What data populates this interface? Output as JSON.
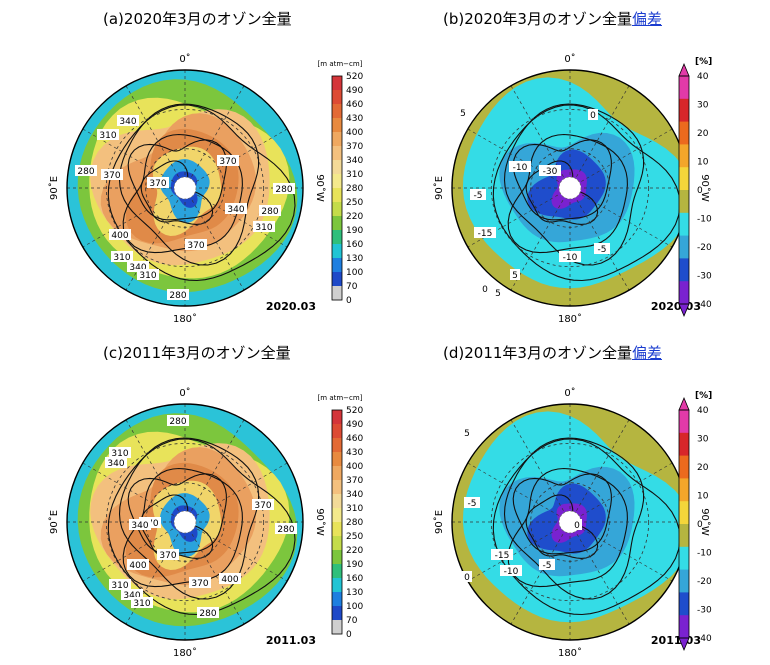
{
  "panels": [
    {
      "id": "a",
      "title": "(a)2020年3月のオゾン全量",
      "title_link": "",
      "kind": "total",
      "date": "2020.03",
      "contour_labels": [
        "340",
        "310",
        "370",
        "280",
        "370",
        "370",
        "400",
        "280",
        "310",
        "340",
        "310",
        "280",
        "280",
        "310",
        "340",
        "370"
      ],
      "axis_labels": {
        "top": "0˚",
        "left": "90˚E",
        "right": "90˚W",
        "bottom": "180˚"
      }
    },
    {
      "id": "b",
      "title": "(b)2020年3月のオゾン全量",
      "title_link": "偏差",
      "kind": "anomaly",
      "date": "2020.03",
      "contour_labels": [
        "5",
        "0",
        "-10",
        "-30",
        "-5",
        "-15",
        "-10",
        "-5",
        "5",
        "5",
        "0"
      ],
      "axis_labels": {
        "top": "0˚",
        "left": "90˚E",
        "right": "90˚W",
        "bottom": "180˚"
      }
    },
    {
      "id": "c",
      "title": "(c)2011年3月のオゾン全量",
      "title_link": "",
      "kind": "total",
      "date": "2011.03",
      "contour_labels": [
        "280",
        "310",
        "340",
        "370",
        "370",
        "340",
        "400",
        "370",
        "400",
        "310",
        "340",
        "310",
        "280",
        "370",
        "280"
      ],
      "axis_labels": {
        "top": "0˚",
        "left": "90˚E",
        "right": "90˚W",
        "bottom": "180˚"
      }
    },
    {
      "id": "d",
      "title": "(d)2011年3月のオゾン全量",
      "title_link": "偏差",
      "kind": "anomaly",
      "date": "2011.03",
      "contour_labels": [
        "5",
        "-5",
        "0",
        "-15",
        "-10",
        "-5",
        "0"
      ],
      "axis_labels": {
        "top": "0˚",
        "left": "90˚E",
        "right": "90˚W",
        "bottom": "180˚"
      }
    }
  ],
  "colorbar_total": {
    "unit": "[m atm−cm]",
    "ticks": [
      "520",
      "490",
      "460",
      "430",
      "400",
      "370",
      "340",
      "310",
      "280",
      "250",
      "220",
      "190",
      "160",
      "130",
      "100",
      "70",
      "0"
    ],
    "colors": [
      "#d4353a",
      "#dd4b34",
      "#e36a35",
      "#e88a3f",
      "#efa860",
      "#f3c07e",
      "#f3da98",
      "#f4e98c",
      "#e8e35a",
      "#c4dc4a",
      "#7cc63d",
      "#2fbf7b",
      "#21c4d4",
      "#1e7fe0",
      "#1e49c8"
    ],
    "gray_colors": [
      "#cfcfcf",
      "#b8b8b8",
      "#a2a2a2",
      "#8b8b8b",
      "#747474",
      "#565656"
    ]
  },
  "colorbar_anomaly": {
    "unit": "[%]",
    "ticks": [
      "40",
      "30",
      "20",
      "10",
      "0",
      "-10",
      "-20",
      "-30",
      "-40"
    ],
    "colors": [
      "#e23aa8",
      "#d7262a",
      "#ec6a1e",
      "#f3a62a",
      "#f4d63a",
      "#b5b540",
      "#34dce6",
      "#35a6d8",
      "#1f4dcc",
      "#7a22d0"
    ]
  }
}
